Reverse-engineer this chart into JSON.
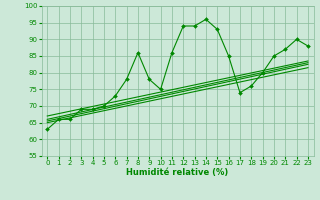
{
  "title": "",
  "xlabel": "Humidité relative (%)",
  "ylabel": "",
  "bg_color": "#cce8d8",
  "grid_color": "#88bb99",
  "line_color": "#008800",
  "xlim": [
    -0.5,
    23.5
  ],
  "ylim": [
    55,
    100
  ],
  "yticks": [
    55,
    60,
    65,
    70,
    75,
    80,
    85,
    90,
    95,
    100
  ],
  "xticks": [
    0,
    1,
    2,
    3,
    4,
    5,
    6,
    7,
    8,
    9,
    10,
    11,
    12,
    13,
    14,
    15,
    16,
    17,
    18,
    19,
    20,
    21,
    22,
    23
  ],
  "main_series": [
    [
      0,
      63
    ],
    [
      1,
      66
    ],
    [
      2,
      66
    ],
    [
      3,
      69
    ],
    [
      4,
      69
    ],
    [
      5,
      70
    ],
    [
      6,
      73
    ],
    [
      7,
      78
    ],
    [
      8,
      86
    ],
    [
      9,
      78
    ],
    [
      10,
      75
    ],
    [
      11,
      86
    ],
    [
      12,
      94
    ],
    [
      13,
      94
    ],
    [
      14,
      96
    ],
    [
      15,
      93
    ],
    [
      16,
      85
    ],
    [
      17,
      74
    ],
    [
      18,
      76
    ],
    [
      19,
      80
    ],
    [
      20,
      85
    ],
    [
      21,
      87
    ],
    [
      22,
      90
    ],
    [
      23,
      88
    ]
  ],
  "reg_lines": [
    [
      [
        0,
        65.0
      ],
      [
        23,
        81.5
      ]
    ],
    [
      [
        0,
        65.5
      ],
      [
        23,
        82.5
      ]
    ],
    [
      [
        0,
        66.0
      ],
      [
        23,
        83.0
      ]
    ],
    [
      [
        0,
        67.0
      ],
      [
        23,
        83.5
      ]
    ]
  ],
  "xlabel_fontsize": 6,
  "tick_fontsize": 5,
  "linewidth": 0.8,
  "marker_size": 2.0
}
